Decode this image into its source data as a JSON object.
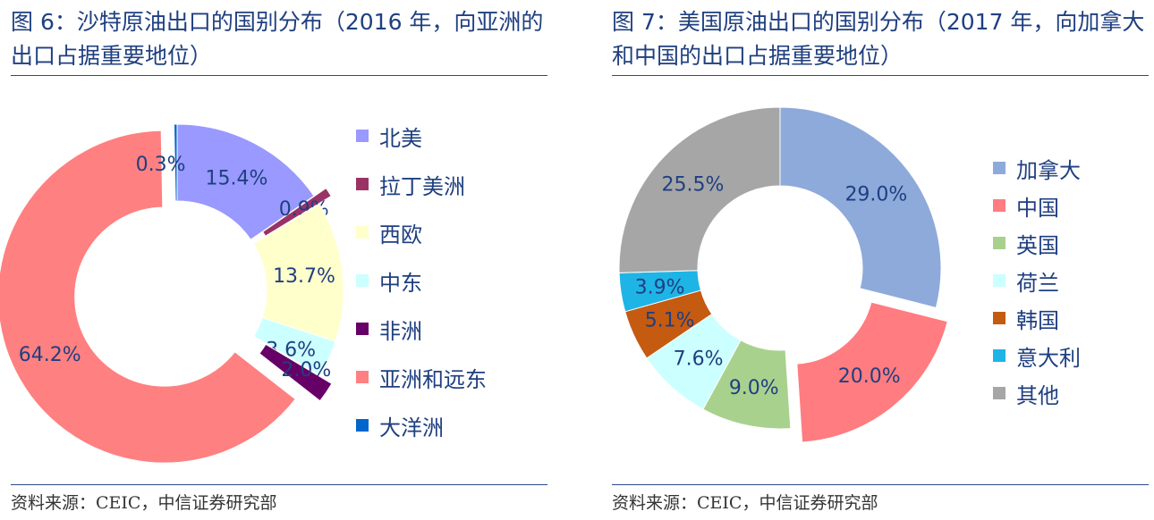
{
  "charts": [
    {
      "title": "图 6：沙特原油出口的国别分布（2016 年，向亚洲的出口占据重要地位）",
      "source": "资料来源：CEIC，中信证券研究部",
      "chart_data": {
        "type": "pie",
        "categories": [
          "北美",
          "拉丁美洲",
          "西欧",
          "中东",
          "非洲",
          "亚洲和远东",
          "大洋洲"
        ],
        "values": [
          15.4,
          0.9,
          13.7,
          3.6,
          2.0,
          64.2,
          0.3
        ],
        "value_labels": [
          "15.4%",
          "0.9%",
          "13.7%",
          "3.6%",
          "2.0%",
          "64.2%",
          "0.3%"
        ],
        "colors": [
          "#9999ff",
          "#993366",
          "#ffffcc",
          "#ccffff",
          "#660066",
          "#ff8080",
          "#0066cc"
        ],
        "exploded": [
          false,
          true,
          false,
          false,
          true,
          true,
          false
        ],
        "legend_position": "right"
      }
    },
    {
      "title": "图 7：美国原油出口的国别分布（2017 年，向加拿大和中国的出口占据重要地位）",
      "source": "资料来源：CEIC，中信证券研究部",
      "chart_data": {
        "type": "pie",
        "categories": [
          "加拿大",
          "中国",
          "英国",
          "荷兰",
          "韩国",
          "意大利",
          "其他"
        ],
        "values": [
          29.0,
          20.0,
          9.0,
          7.6,
          5.1,
          3.9,
          25.5
        ],
        "value_labels": [
          "29.0%",
          "20.0%",
          "9.0%",
          "7.6%",
          "5.1%",
          "3.9%",
          "25.5%"
        ],
        "colors": [
          "#8eaadb",
          "#ff7c80",
          "#a9d18e",
          "#ccffff",
          "#c55a11",
          "#1fb4e6",
          "#a6a6a6"
        ],
        "exploded": [
          false,
          true,
          false,
          false,
          false,
          false,
          false
        ],
        "legend_position": "right"
      }
    }
  ]
}
